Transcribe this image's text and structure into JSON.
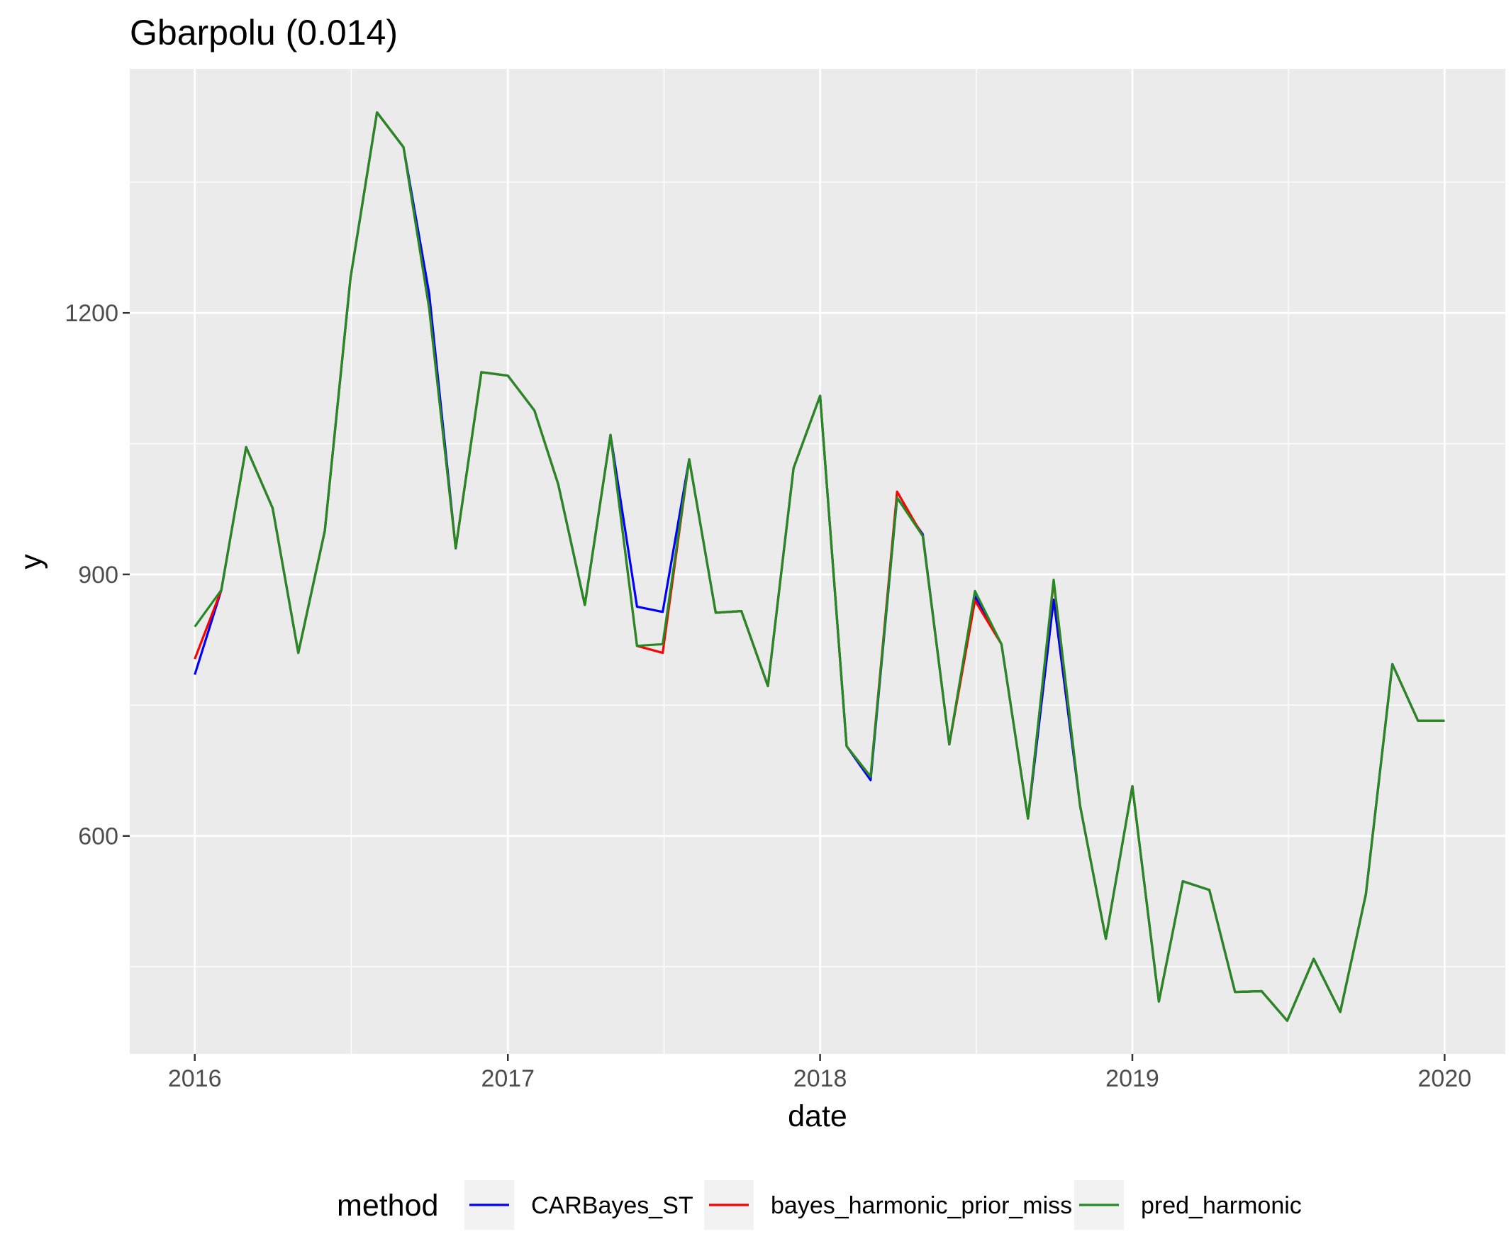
{
  "chart_data": {
    "type": "line",
    "title": "Gbarpolu (0.014)",
    "xlabel": "date",
    "ylabel": "y",
    "x_ticks": [
      "2016",
      "2017",
      "2018",
      "2019",
      "2020"
    ],
    "y_ticks": [
      600,
      900,
      1200
    ],
    "xlim": [
      "2015-10-17",
      "2020-03-12"
    ],
    "ylim": [
      350,
      1480
    ],
    "grid": true,
    "legend": {
      "title": "method",
      "position": "bottom"
    },
    "x": [
      "2016-01",
      "2016-02",
      "2016-03",
      "2016-04",
      "2016-05",
      "2016-06",
      "2016-07",
      "2016-08",
      "2016-09",
      "2016-10",
      "2016-11",
      "2016-12",
      "2017-01",
      "2017-02",
      "2017-03",
      "2017-04",
      "2017-05",
      "2017-06",
      "2017-07",
      "2017-08",
      "2017-09",
      "2017-10",
      "2017-11",
      "2017-12",
      "2018-01",
      "2018-02",
      "2018-03",
      "2018-04",
      "2018-05",
      "2018-06",
      "2018-07",
      "2018-08",
      "2018-09",
      "2018-10",
      "2018-11",
      "2018-12",
      "2019-01",
      "2019-02",
      "2019-03",
      "2019-04",
      "2019-05",
      "2019-06",
      "2019-07",
      "2019-08",
      "2019-09",
      "2019-10",
      "2019-11",
      "2019-12",
      "2020-01"
    ],
    "series": [
      {
        "name": "CARBayes_ST",
        "color": "#0000FF",
        "values": [
          785,
          882,
          1046,
          976,
          810,
          950,
          1240,
          1430,
          1390,
          1222,
          930,
          1132,
          1128,
          1088,
          1003,
          865,
          1060,
          863,
          857,
          1032,
          856,
          858,
          772,
          1022,
          1105,
          703,
          664,
          988,
          946,
          705,
          875,
          820,
          620,
          871,
          634,
          482,
          657,
          410,
          548,
          538,
          421,
          422,
          388,
          459,
          398,
          533,
          797,
          732,
          732
        ]
      },
      {
        "name": "bayes_harmonic_prior_miss",
        "color": "#FF0000",
        "values": [
          803,
          882,
          1046,
          976,
          810,
          950,
          1240,
          1430,
          1390,
          1205,
          930,
          1132,
          1128,
          1088,
          1003,
          865,
          1060,
          818,
          810,
          1032,
          856,
          858,
          772,
          1022,
          1105,
          703,
          668,
          995,
          944,
          705,
          870,
          820,
          620,
          892,
          634,
          482,
          657,
          410,
          548,
          538,
          421,
          422,
          388,
          459,
          398,
          533,
          797,
          732,
          732
        ]
      },
      {
        "name": "pred_harmonic",
        "color": "#228B22",
        "values": [
          840,
          882,
          1046,
          976,
          810,
          950,
          1240,
          1430,
          1390,
          1205,
          930,
          1132,
          1128,
          1088,
          1003,
          865,
          1060,
          818,
          820,
          1032,
          856,
          858,
          772,
          1022,
          1105,
          703,
          668,
          988,
          944,
          705,
          881,
          820,
          620,
          894,
          634,
          482,
          657,
          410,
          548,
          538,
          421,
          422,
          388,
          459,
          398,
          533,
          797,
          732,
          732
        ]
      }
    ]
  }
}
